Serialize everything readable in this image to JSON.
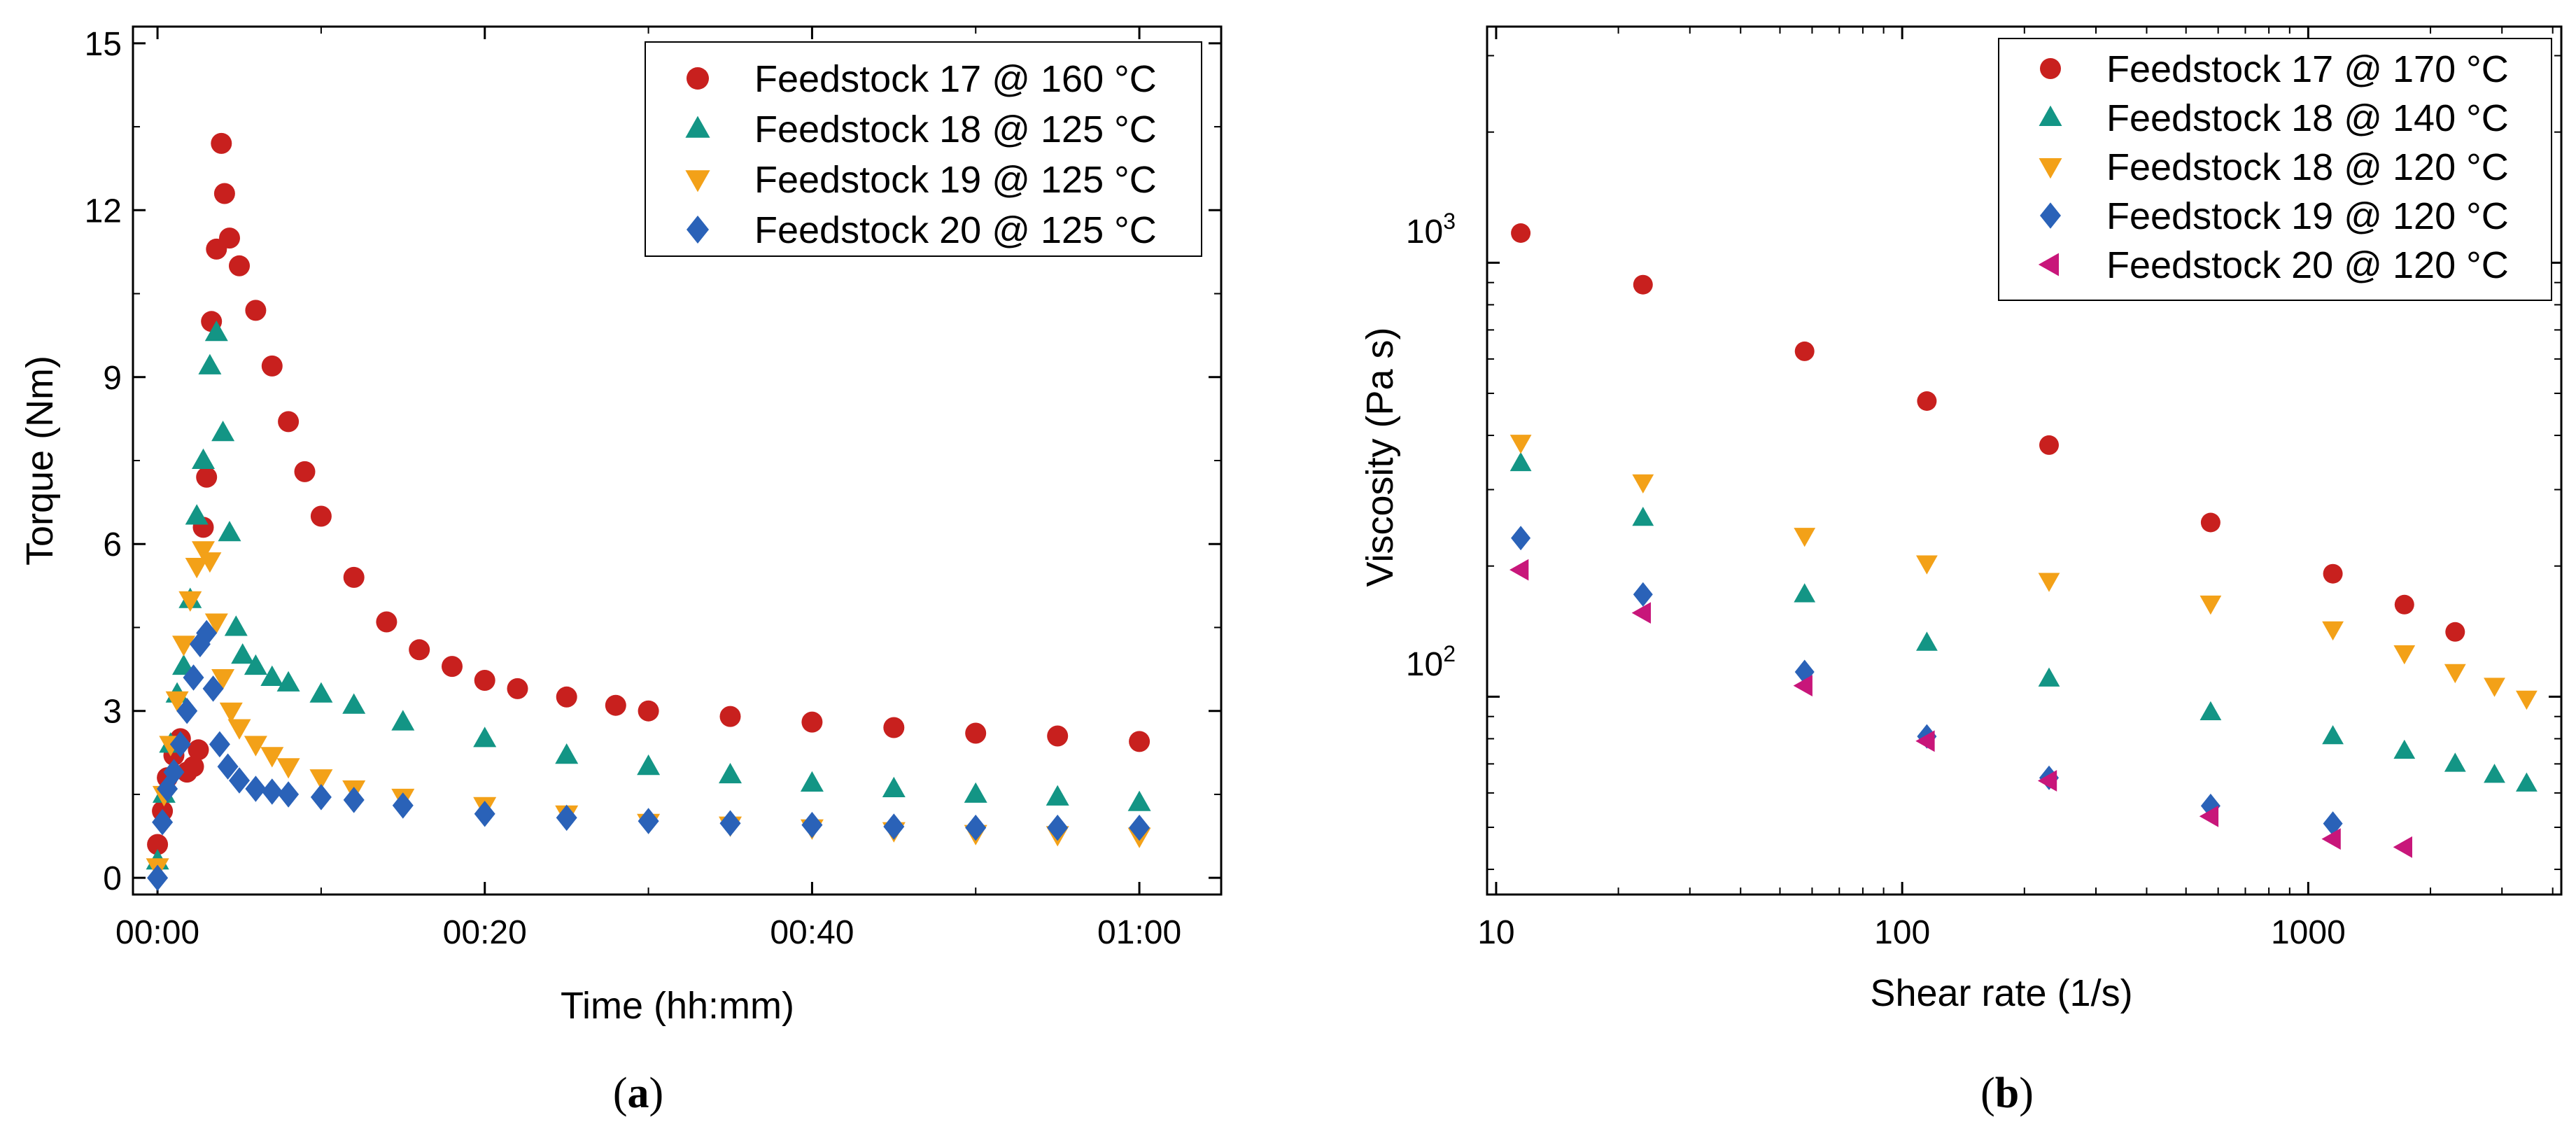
{
  "chart_data": [
    {
      "type": "scatter",
      "panel_label": "a",
      "xlabel": "Time (hh:mm)",
      "ylabel": "Torque (Nm)",
      "x_unit": "minutes",
      "xlim": [
        -1.5,
        65
      ],
      "ylim": [
        -0.3,
        15.3
      ],
      "xticks": [
        0,
        20,
        40,
        60
      ],
      "xtick_labels": [
        "00:00",
        "00:20",
        "00:40",
        "01:00"
      ],
      "yticks": [
        0,
        3,
        6,
        9,
        12,
        15
      ],
      "ytick_labels": [
        "0",
        "3",
        "6",
        "9",
        "12",
        "15"
      ],
      "legend_position": "top-right",
      "series": [
        {
          "name": "Feedstock 17 @ 160 °C",
          "marker": "circle",
          "color": "#c8201e",
          "x": [
            0,
            0.3,
            0.6,
            1.0,
            1.4,
            1.8,
            2.2,
            2.5,
            2.8,
            3.0,
            3.3,
            3.6,
            3.9,
            4.1,
            4.4,
            5,
            6,
            7,
            8,
            9,
            10,
            12,
            14,
            16,
            18,
            20,
            22,
            25,
            28,
            30,
            35,
            40,
            45,
            50,
            55,
            60
          ],
          "y": [
            0.6,
            1.2,
            1.8,
            2.2,
            2.5,
            1.9,
            2.0,
            2.3,
            6.3,
            7.2,
            10.0,
            11.3,
            13.2,
            12.3,
            11.5,
            11.0,
            10.2,
            9.2,
            8.2,
            7.3,
            6.5,
            5.4,
            4.6,
            4.1,
            3.8,
            3.55,
            3.4,
            3.25,
            3.1,
            3.0,
            2.9,
            2.8,
            2.7,
            2.6,
            2.55,
            2.45
          ]
        },
        {
          "name": "Feedstock 18 @ 125 °C",
          "marker": "triangle-up",
          "color": "#139585",
          "x": [
            0,
            0.4,
            0.8,
            1.2,
            1.6,
            2.0,
            2.4,
            2.8,
            3.2,
            3.6,
            4.0,
            4.4,
            4.8,
            5.2,
            6,
            7,
            8,
            10,
            12,
            15,
            20,
            25,
            30,
            35,
            40,
            45,
            50,
            55,
            60
          ],
          "y": [
            0.3,
            1.5,
            2.4,
            3.3,
            3.8,
            5.0,
            6.5,
            7.5,
            9.2,
            9.8,
            8.0,
            6.2,
            4.5,
            4.0,
            3.8,
            3.6,
            3.5,
            3.3,
            3.1,
            2.8,
            2.5,
            2.2,
            2.0,
            1.85,
            1.7,
            1.6,
            1.5,
            1.45,
            1.35
          ]
        },
        {
          "name": "Feedstock 19 @ 125 °C",
          "marker": "triangle-down",
          "color": "#f3a118",
          "x": [
            0,
            0.4,
            0.8,
            1.2,
            1.6,
            2.0,
            2.4,
            2.8,
            3.2,
            3.6,
            4.0,
            4.5,
            5,
            6,
            7,
            8,
            10,
            12,
            15,
            20,
            25,
            30,
            35,
            40,
            45,
            50,
            55,
            60
          ],
          "y": [
            0.2,
            1.5,
            2.4,
            3.2,
            4.2,
            5.0,
            5.6,
            5.9,
            5.7,
            4.6,
            3.6,
            3.0,
            2.7,
            2.4,
            2.2,
            2.0,
            1.8,
            1.6,
            1.45,
            1.3,
            1.15,
            1.0,
            0.95,
            0.9,
            0.85,
            0.8,
            0.78,
            0.75
          ]
        },
        {
          "name": "Feedstock 20 @ 125 °C",
          "marker": "diamond",
          "color": "#2a62b8",
          "x": [
            0,
            0.3,
            0.6,
            1.0,
            1.4,
            1.8,
            2.2,
            2.6,
            3.0,
            3.4,
            3.8,
            4.3,
            5,
            6,
            7,
            8,
            10,
            12,
            15,
            20,
            25,
            30,
            35,
            40,
            45,
            50,
            55,
            60
          ],
          "y": [
            0.0,
            1.0,
            1.6,
            1.9,
            2.4,
            3.0,
            3.6,
            4.2,
            4.4,
            3.4,
            2.4,
            2.0,
            1.75,
            1.6,
            1.55,
            1.5,
            1.45,
            1.4,
            1.3,
            1.15,
            1.08,
            1.02,
            0.98,
            0.95,
            0.92,
            0.9,
            0.9,
            0.9
          ]
        }
      ]
    },
    {
      "type": "scatter",
      "panel_label": "b",
      "xlabel": "Shear rate (1/s)",
      "ylabel": "Viscosity (Pa s)",
      "xscale": "log",
      "yscale": "log",
      "xlim": [
        9.5,
        4200
      ],
      "ylim": [
        35,
        3500
      ],
      "xtick_labels": [
        "10",
        "100",
        "1000"
      ],
      "ytick_labels": [
        {
          "base": "10",
          "exp": "2"
        },
        {
          "base": "10",
          "exp": "3"
        }
      ],
      "legend_position": "top-right",
      "series": [
        {
          "name": "Feedstock 17 @ 170 °C",
          "marker": "circle",
          "color": "#c8201e",
          "x": [
            11.5,
            23,
            57.5,
            115,
            230,
            575,
            1150,
            1725,
            2300
          ],
          "y": [
            1170,
            890,
            625,
            480,
            380,
            252,
            192,
            163,
            141
          ]
        },
        {
          "name": "Feedstock 18 @ 140 °C",
          "marker": "triangle-up",
          "color": "#139585",
          "x": [
            11.5,
            23,
            57.5,
            115,
            230,
            575,
            1150,
            1725,
            2300,
            2875,
            3450
          ],
          "y": [
            345,
            258,
            172,
            133,
            110,
            92,
            81,
            75,
            70,
            66,
            63
          ]
        },
        {
          "name": "Feedstock 18 @ 120 °C",
          "marker": "triangle-down",
          "color": "#f3a118",
          "x": [
            11.5,
            23,
            57.5,
            115,
            230,
            575,
            1150,
            1725,
            2300,
            2875,
            3450
          ],
          "y": [
            385,
            312,
            235,
            203,
            185,
            164,
            143,
            126,
            114,
            106,
            99
          ]
        },
        {
          "name": "Feedstock 19 @ 120 °C",
          "marker": "diamond",
          "color": "#2a62b8",
          "x": [
            11.5,
            23,
            57.5,
            115,
            230,
            575,
            1150
          ],
          "y": [
            232,
            172,
            114,
            81,
            65,
            56,
            51
          ]
        },
        {
          "name": "Feedstock 20 @ 120 °C",
          "marker": "triangle-left",
          "color": "#c8167a",
          "x": [
            11.5,
            23,
            57.5,
            115,
            230,
            575,
            1150,
            1725
          ],
          "y": [
            196,
            156,
            106,
            79,
            64,
            53,
            47,
            45
          ]
        }
      ]
    }
  ]
}
